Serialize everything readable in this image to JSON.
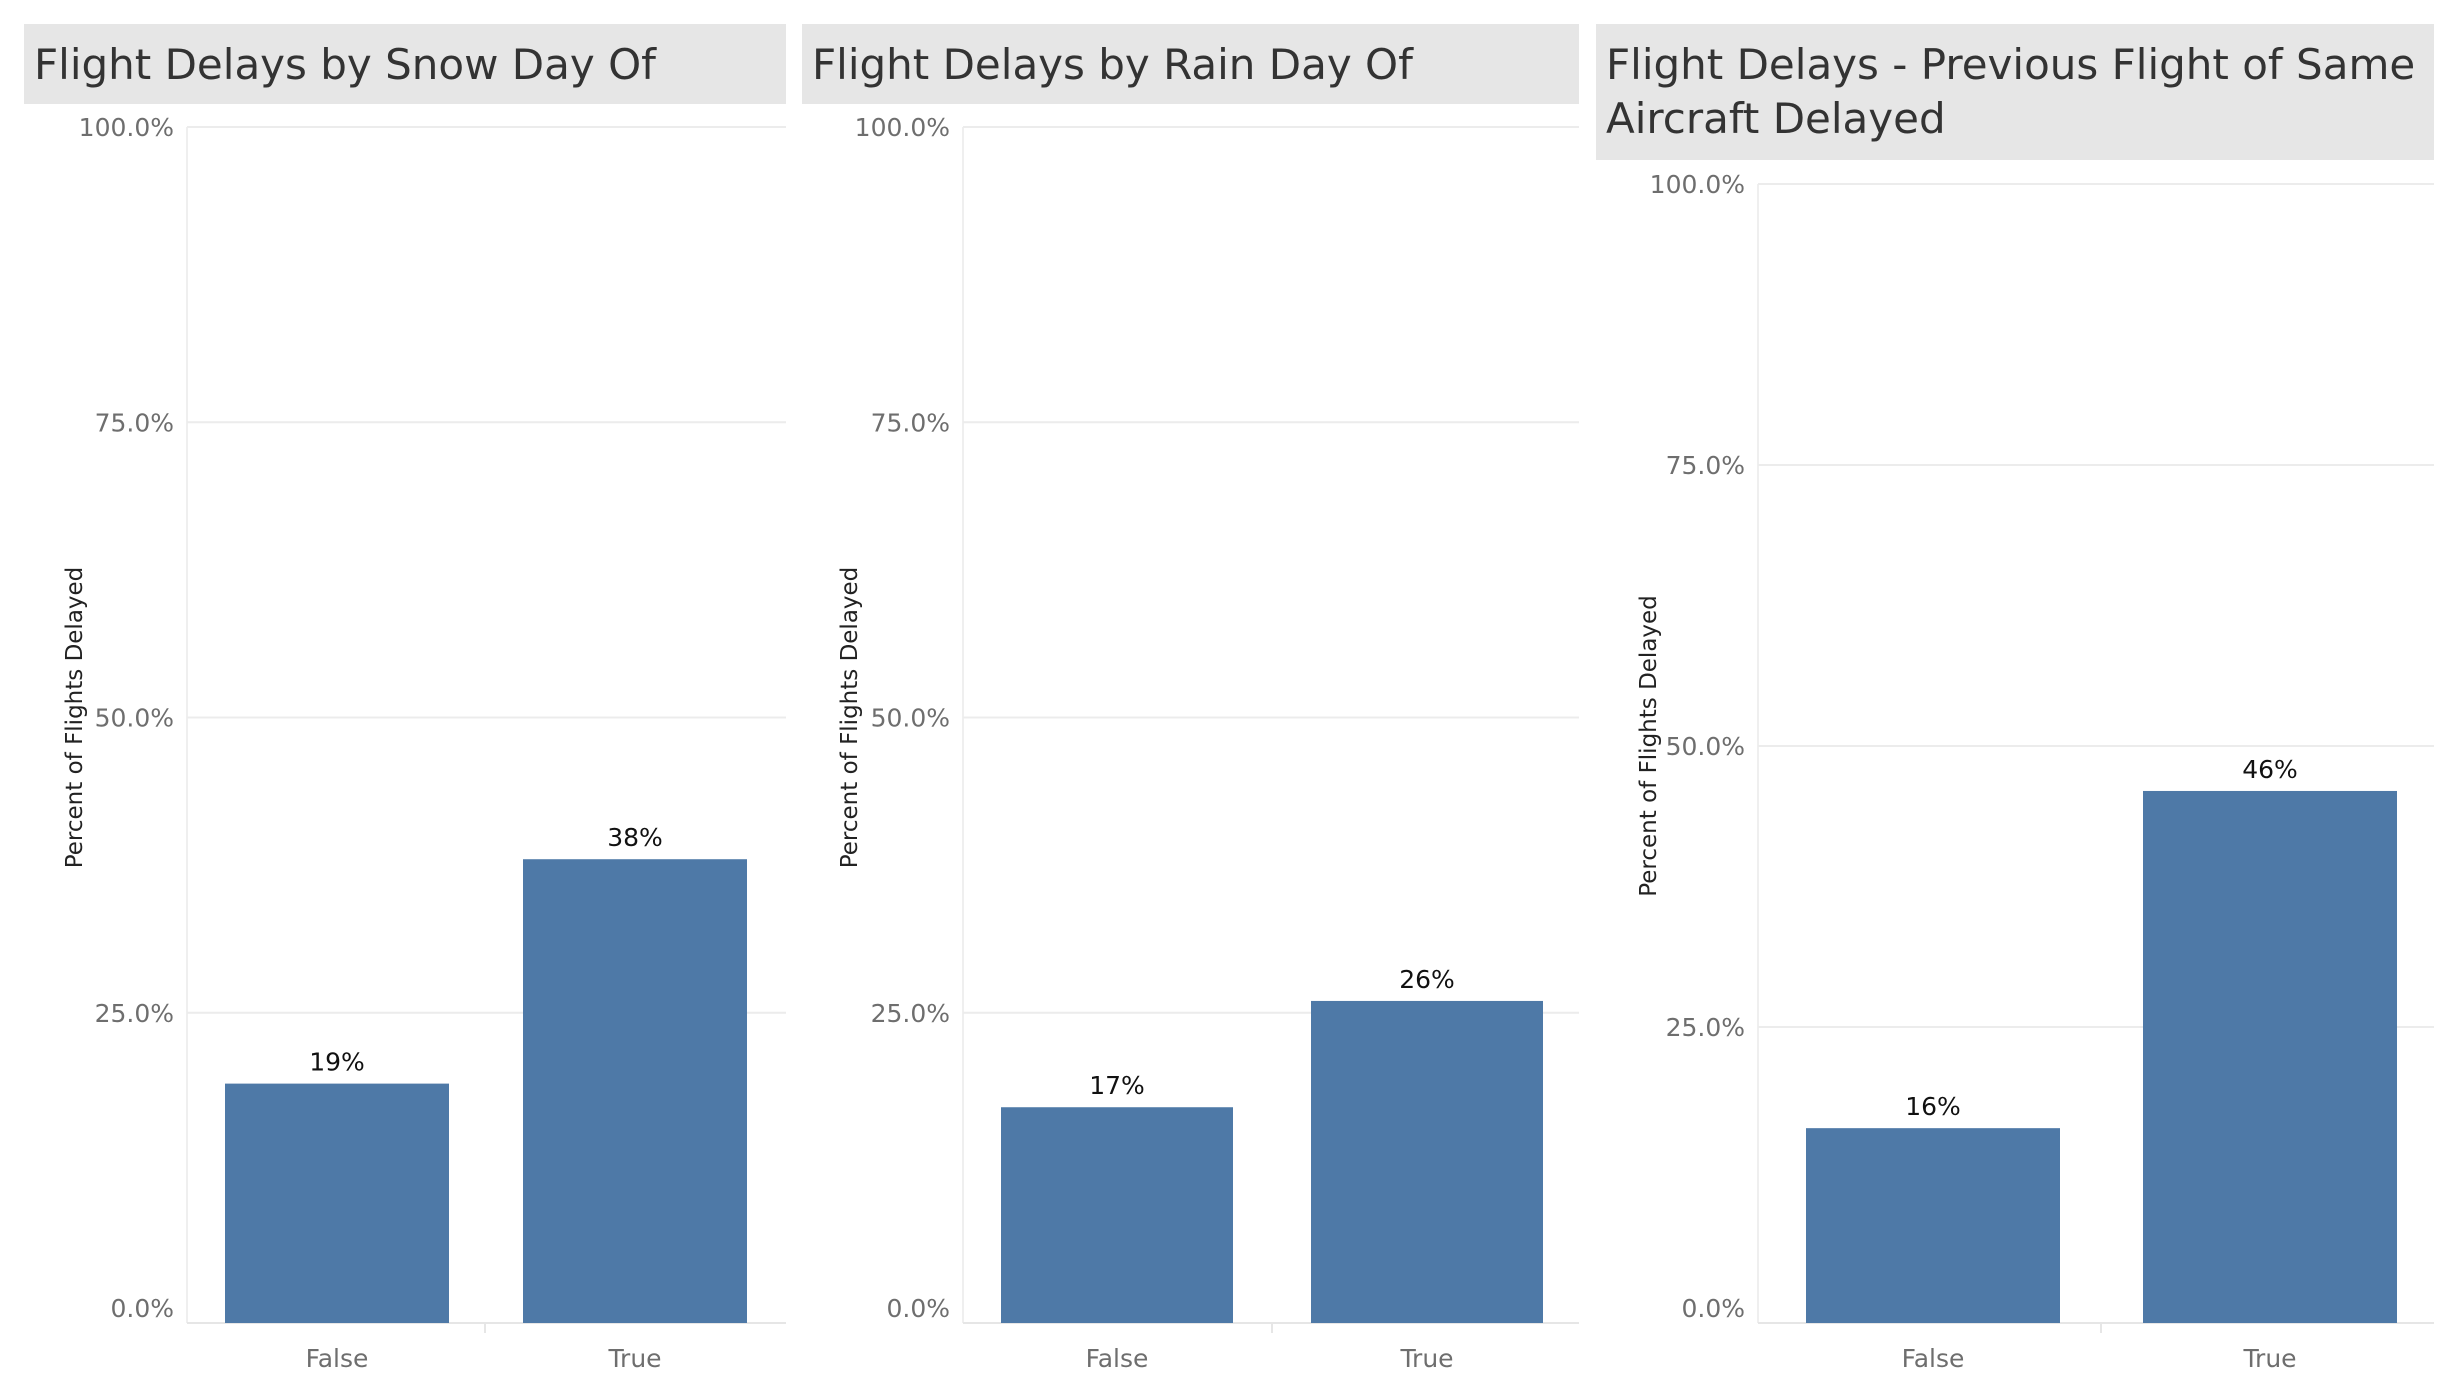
{
  "chart_data": [
    {
      "type": "bar",
      "title": "Flight Delays by Snow Day Of",
      "ylabel": "Percent of Flights Delayed",
      "categories": [
        "False",
        "True"
      ],
      "values": [
        19,
        38
      ],
      "value_labels": [
        "19%",
        "38%"
      ],
      "ylim": [
        0,
        100
      ],
      "yticks": [
        "0.0%",
        "25.0%",
        "50.0%",
        "75.0%",
        "100.0%"
      ],
      "grid": true,
      "bar_color": "#4e79a7"
    },
    {
      "type": "bar",
      "title": "Flight Delays by Rain Day Of",
      "ylabel": "Percent of Flights Delayed",
      "categories": [
        "False",
        "True"
      ],
      "values": [
        17,
        26
      ],
      "value_labels": [
        "17%",
        "26%"
      ],
      "ylim": [
        0,
        100
      ],
      "yticks": [
        "0.0%",
        "25.0%",
        "50.0%",
        "75.0%",
        "100.0%"
      ],
      "grid": true,
      "bar_color": "#4e79a7"
    },
    {
      "type": "bar",
      "title": "Flight Delays - Previous Flight of Same Aircraft Delayed",
      "ylabel": "Percent of Flights Delayed",
      "categories": [
        "False",
        "True"
      ],
      "values": [
        16,
        46
      ],
      "value_labels": [
        "16%",
        "46%"
      ],
      "ylim": [
        0,
        100
      ],
      "yticks": [
        "0.0%",
        "25.0%",
        "50.0%",
        "75.0%",
        "100.0%"
      ],
      "grid": true,
      "bar_color": "#4e79a7"
    }
  ]
}
